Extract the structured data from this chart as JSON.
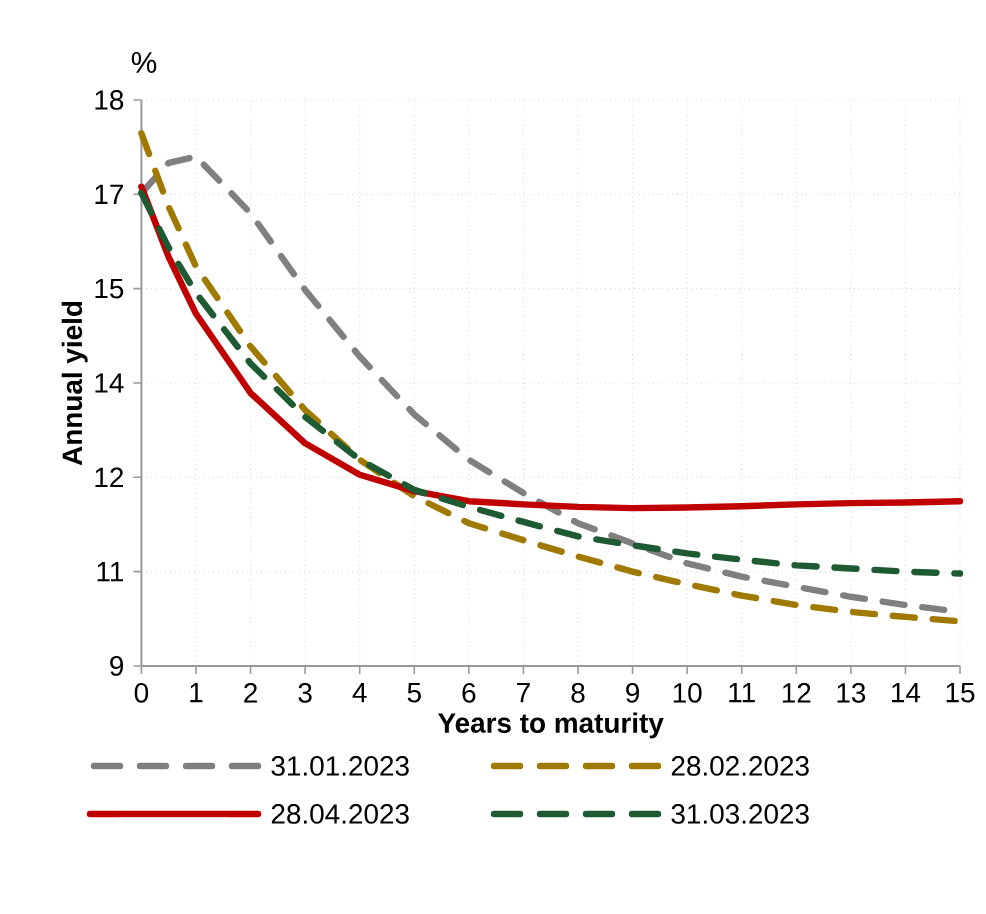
{
  "chart_data": {
    "type": "line",
    "xlabel": "Years to maturity",
    "ylabel": "Annual yield",
    "annotations": [
      "%"
    ],
    "x": [
      0,
      0.5,
      1,
      2,
      3,
      4,
      5,
      6,
      7,
      8,
      9,
      10,
      11,
      12,
      13,
      14,
      15
    ],
    "series": [
      {
        "name": "31.01.2023",
        "color": "#808080",
        "line_style": "dashed",
        "values": [
          16.52,
          17.0,
          17.1,
          16.2,
          14.98,
          13.92,
          13.0,
          12.28,
          11.75,
          11.27,
          10.95,
          10.63,
          10.42,
          10.26,
          10.1,
          9.97,
          9.86
        ]
      },
      {
        "name": "28.02.2023",
        "color": "#a07a00",
        "line_style": "dashed",
        "values": [
          17.47,
          16.3,
          15.35,
          14.08,
          13.07,
          12.28,
          11.7,
          11.27,
          11.0,
          10.74,
          10.5,
          10.3,
          10.12,
          9.97,
          9.86,
          9.78,
          9.71
        ]
      },
      {
        "name": "28.04.2023",
        "color": "#c00000",
        "line_style": "solid",
        "values": [
          16.62,
          15.5,
          14.6,
          13.34,
          12.54,
          12.04,
          11.78,
          11.62,
          11.57,
          11.53,
          11.51,
          11.52,
          11.54,
          11.57,
          11.59,
          11.6,
          11.62
        ]
      },
      {
        "name": "31.03.2023",
        "color": "#1e5a32",
        "line_style": "dashed",
        "values": [
          16.52,
          15.65,
          14.93,
          13.81,
          12.96,
          12.28,
          11.8,
          11.53,
          11.29,
          11.06,
          10.92,
          10.79,
          10.69,
          10.6,
          10.55,
          10.5,
          10.47
        ]
      }
    ],
    "xlim": [
      0,
      15
    ],
    "xticks": [
      0,
      1,
      2,
      3,
      4,
      5,
      6,
      7,
      8,
      9,
      10,
      11,
      12,
      13,
      14,
      15
    ],
    "ylim": [
      9,
      18
    ],
    "yticks": [
      9,
      {
        "value": 10.5,
        "label": "11"
      },
      12,
      {
        "value": 13.5,
        "label": "14"
      },
      15,
      {
        "value": 16.5,
        "label": "17"
      },
      18
    ],
    "grid": true,
    "legend": "bottom",
    "marker": "none"
  }
}
